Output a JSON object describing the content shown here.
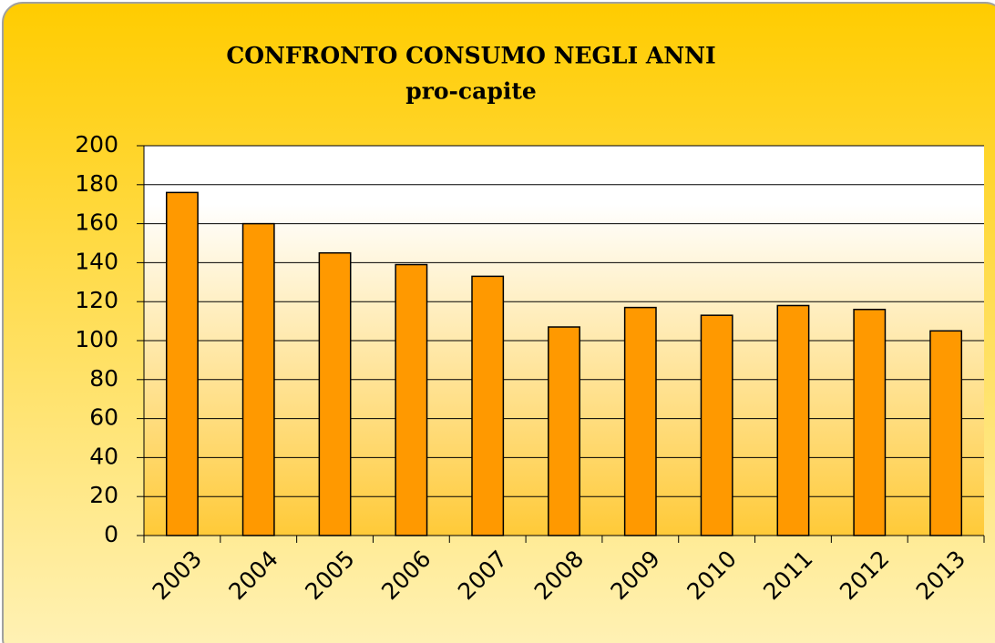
{
  "chart_data": {
    "type": "bar",
    "title": "CONFRONTO CONSUMO NEGLI ANNI",
    "subtitle": "pro-capite",
    "categories": [
      "2003",
      "2004",
      "2005",
      "2006",
      "2007",
      "2008",
      "2009",
      "2010",
      "2011",
      "2012",
      "2013"
    ],
    "values": [
      176,
      160,
      145,
      139,
      133,
      107,
      117,
      113,
      118,
      116,
      105
    ],
    "color": "#ff9900",
    "ylim": [
      0,
      200
    ],
    "yticks": [
      0,
      20,
      40,
      60,
      80,
      100,
      120,
      140,
      160,
      180,
      200
    ],
    "grid": true
  }
}
